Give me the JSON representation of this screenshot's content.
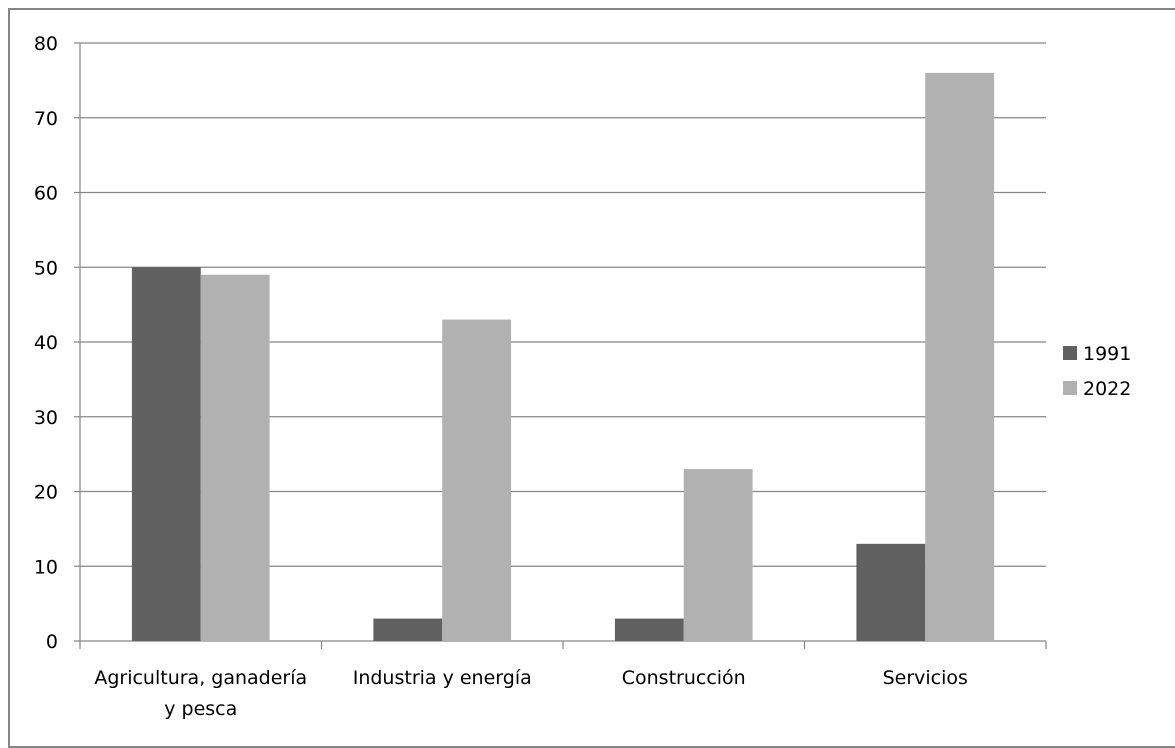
{
  "chart_data": {
    "type": "bar",
    "categories": [
      [
        "Agricultura, ganadería",
        "y pesca"
      ],
      [
        "Industria y energía"
      ],
      [
        "Construcción"
      ],
      [
        "Servicios"
      ]
    ],
    "series": [
      {
        "name": "1991",
        "values": [
          50,
          3,
          3,
          13
        ],
        "color": "#606060"
      },
      {
        "name": "2022",
        "values": [
          49,
          43,
          23,
          76
        ],
        "color": "#b1b1b1"
      }
    ],
    "ylim": [
      0,
      80
    ],
    "yticks": [
      "0",
      "10",
      "20",
      "30",
      "40",
      "50",
      "60",
      "70",
      "80"
    ],
    "ytick_values": [
      0,
      10,
      20,
      30,
      40,
      50,
      60,
      70,
      80
    ],
    "grid": true,
    "legend": "right",
    "title": "",
    "xlabel": "",
    "ylabel": ""
  }
}
